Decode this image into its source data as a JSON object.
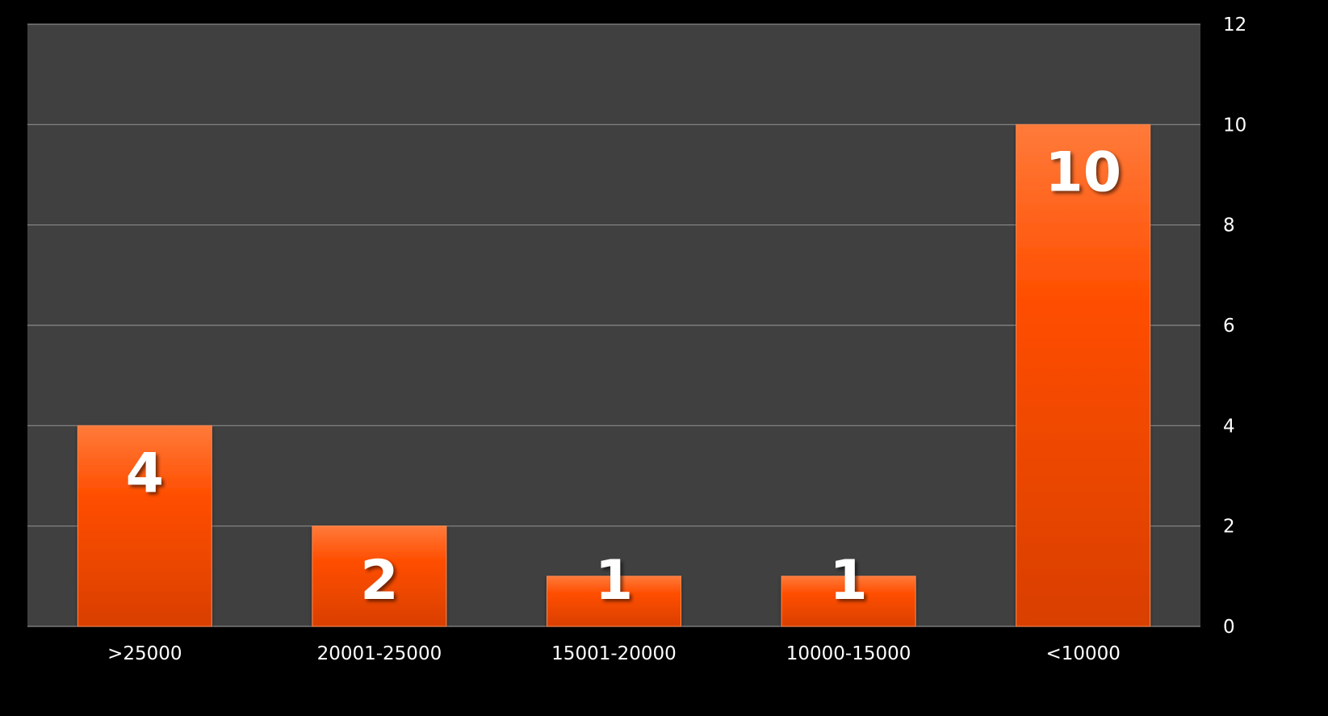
{
  "chart_data": {
    "type": "bar",
    "categories": [
      ">25000",
      "20001-25000",
      "15001-20000",
      "10000-15000",
      "<10000"
    ],
    "values": [
      4,
      2,
      1,
      1,
      10
    ],
    "data_labels": [
      "4",
      "2",
      "1",
      "1",
      "10"
    ],
    "ylim": [
      0,
      12
    ],
    "yticks": [
      0,
      2,
      4,
      6,
      8,
      10,
      12
    ],
    "y_axis_side": "right",
    "grid": true,
    "legend": "none",
    "colors": {
      "page_background": "#000000",
      "plot_background": "#404040",
      "gridline": "#8a8a8a",
      "bar": "#ff4e00",
      "bar_top": "#ff7a3a",
      "bar_bottom": "#d93f00",
      "label_text": "#ffffff"
    }
  }
}
